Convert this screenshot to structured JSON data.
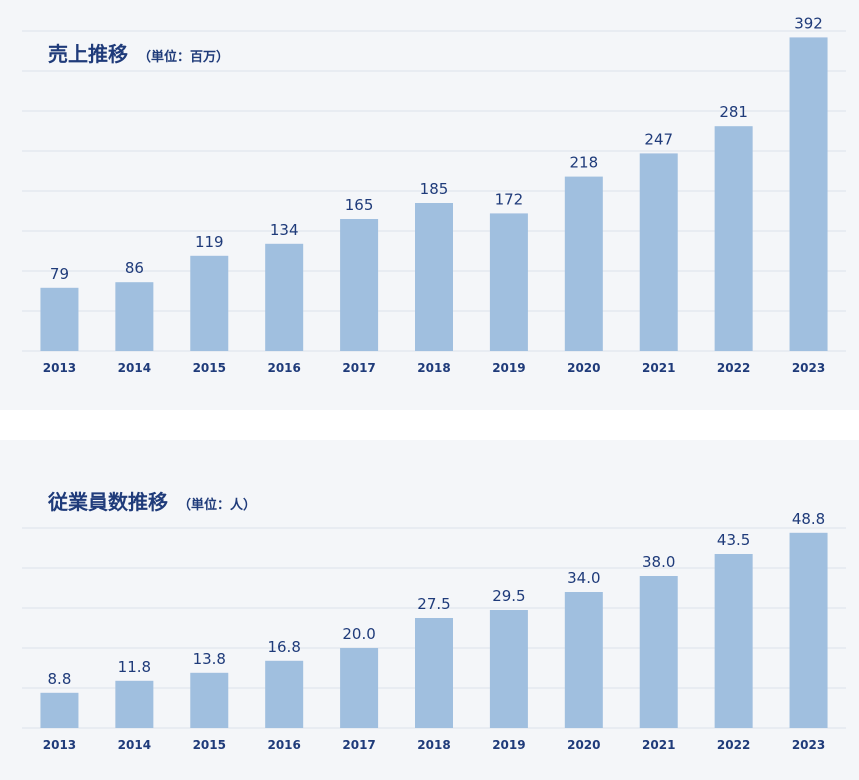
{
  "chart_data": [
    {
      "type": "bar",
      "title": "売上推移",
      "unit": "（単位：百万）",
      "categories": [
        "2013",
        "2014",
        "2015",
        "2016",
        "2017",
        "2018",
        "2019",
        "2020",
        "2021",
        "2022",
        "2023"
      ],
      "values": [
        79,
        86,
        119,
        134,
        165,
        185,
        172,
        218,
        247,
        281,
        392
      ],
      "value_labels": [
        "79",
        "86",
        "119",
        "134",
        "165",
        "185",
        "172",
        "218",
        "247",
        "281",
        "392"
      ],
      "ylim": [
        0,
        400
      ],
      "grid": true,
      "bar_color": "#a0bfdf"
    },
    {
      "type": "bar",
      "title": "従業員数推移",
      "unit": "（単位：人）",
      "categories": [
        "2013",
        "2014",
        "2015",
        "2016",
        "2017",
        "2018",
        "2019",
        "2020",
        "2021",
        "2022",
        "2023"
      ],
      "values": [
        8.8,
        11.8,
        13.8,
        16.8,
        20.0,
        27.5,
        29.5,
        34.0,
        38.0,
        43.5,
        48.8
      ],
      "value_labels": [
        "8.8",
        "11.8",
        "13.8",
        "16.8",
        "20.0",
        "27.5",
        "29.5",
        "34.0",
        "38.0",
        "43.5",
        "48.8"
      ],
      "ylim": [
        0,
        50
      ],
      "grid": true,
      "bar_color": "#a0bfdf"
    }
  ]
}
